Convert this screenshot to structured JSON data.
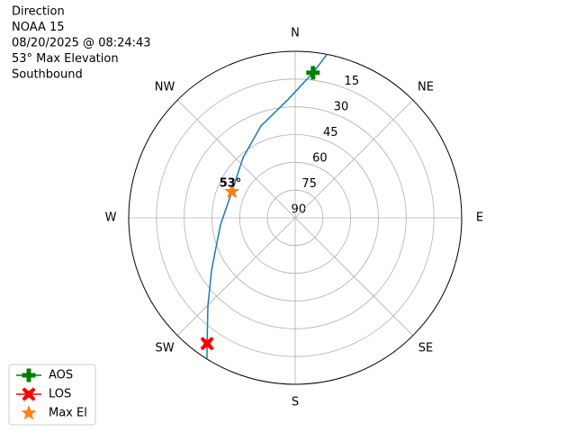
{
  "chart_data": {
    "type": "polar",
    "title": [
      "Direction",
      "NOAA 15",
      "08/20/2025 @ 08:24:43",
      "53° Max Elevation",
      "Southbound"
    ],
    "rlim": [
      90,
      0
    ],
    "rticks": [
      90,
      75,
      60,
      45,
      30,
      15
    ],
    "thetaticks": [
      {
        "value": 0,
        "label": "N"
      },
      {
        "value": 45,
        "label": "NE"
      },
      {
        "value": 90,
        "label": "E"
      },
      {
        "value": 135,
        "label": "SE"
      },
      {
        "value": 180,
        "label": "S"
      },
      {
        "value": 225,
        "label": "SW"
      },
      {
        "value": 270,
        "label": "W"
      },
      {
        "value": 315,
        "label": "NW"
      }
    ],
    "theta_direction": "clockwise",
    "theta_zero": "N",
    "grid": true,
    "legend": "lower left",
    "series": [
      {
        "color": "#1f77b4",
        "marker": "none",
        "x": [
          11,
          7,
          356.5,
          339.6,
          319,
          292.5,
          264.5,
          238,
          224.7,
          215,
          212
        ],
        "values": [
          0,
          11,
          26,
          37,
          47,
          53,
          49.4,
          36.7,
          22.9,
          7,
          0
        ]
      },
      {
        "name": "AOS",
        "color": "#008000",
        "marker": "plus",
        "x": [
          7
        ],
        "values": [
          11
        ]
      },
      {
        "name": "LOS",
        "color": "#ff0000",
        "marker": "x",
        "x": [
          215
        ],
        "values": [
          7
        ]
      },
      {
        "name": "Max El",
        "color": "#ff7f0e",
        "marker": "star",
        "x": [
          292.5
        ],
        "values": [
          53
        ],
        "value_labels": [
          "53°"
        ]
      }
    ]
  }
}
